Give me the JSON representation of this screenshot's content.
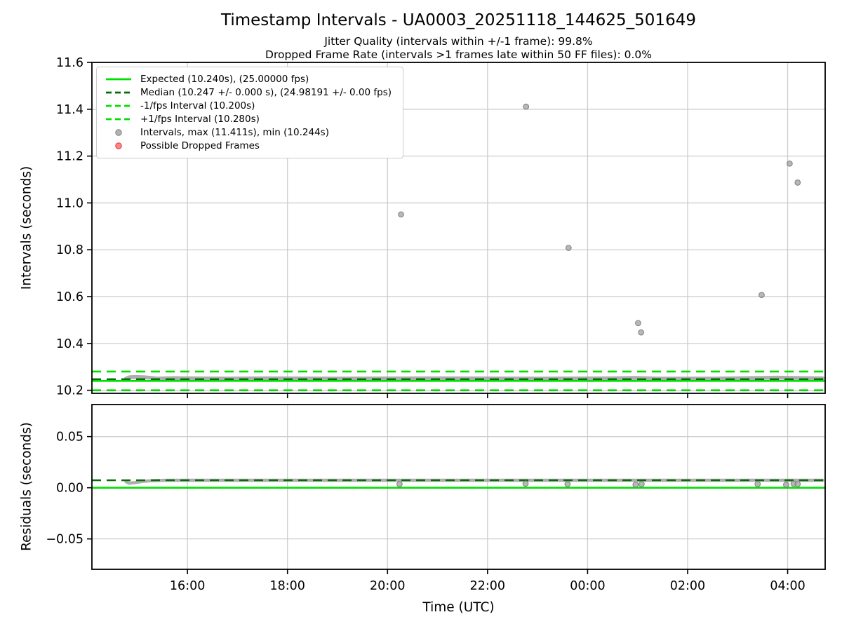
{
  "header": {
    "title": "Timestamp Intervals - UA0003_20251118_144625_501649",
    "jitter_line": "Jitter Quality (intervals within +/-1 frame): 99.8%",
    "dropped_line": "Dropped Frame Rate (intervals >1 frames late within 50 FF files): 0.0%"
  },
  "colors": {
    "bright_green": "#00e000",
    "dark_green": "#006e00",
    "gray_marker": "#a0a0a0",
    "gray_marker_edge": "#828282",
    "red_marker": "#f96a6a",
    "red_marker_edge": "#e23b3b",
    "grid": "#cdcdcd",
    "spine": "#000000",
    "band_gray": "#999999",
    "legend_border": "#cccccc"
  },
  "chart_data": [
    {
      "panel": "intervals",
      "type": "scatter",
      "ylabel": "Intervals (seconds)",
      "x_units": "decimal hours UTC (24+ = next day)",
      "xlim": [
        14.09,
        28.75
      ],
      "ylim": [
        10.187,
        11.6
      ],
      "yticks": [
        10.2,
        10.4,
        10.6,
        10.8,
        11.0,
        11.2,
        11.4,
        11.6
      ],
      "ytick_labels": [
        "10.2",
        "10.4",
        "10.6",
        "10.8",
        "11.0",
        "11.2",
        "11.4",
        "11.6"
      ],
      "xticks": [
        16,
        18,
        20,
        22,
        24,
        26,
        28
      ],
      "xtick_labels": [
        "16:00",
        "18:00",
        "20:00",
        "22:00",
        "00:00",
        "02:00",
        "04:00"
      ],
      "show_xtick_labels": false,
      "grid": true,
      "legend_position": "upper left",
      "hlines": [
        {
          "name": "minus-1fps-line",
          "value": 10.2,
          "dash": "dashed",
          "color_key": "bright_green"
        },
        {
          "name": "plus-1fps-line",
          "value": 10.28,
          "dash": "dashed",
          "color_key": "bright_green"
        },
        {
          "name": "median-line",
          "value": 10.247,
          "dash": "dashed",
          "color_key": "dark_green"
        },
        {
          "name": "expected-line",
          "value": 10.24,
          "dash": "solid",
          "color_key": "bright_green"
        }
      ],
      "dense_band": {
        "note": "dense cluster of ~every interval near the median, 10.244-10.258 s, from 14:46 to 04:42",
        "stroke_width": 5.5,
        "points": [
          [
            14.77,
            10.25
          ],
          [
            14.84,
            10.256
          ],
          [
            14.98,
            10.257
          ],
          [
            15.18,
            10.255
          ],
          [
            15.4,
            10.25
          ],
          [
            15.75,
            10.252
          ],
          [
            16.1,
            10.251
          ],
          [
            16.8,
            10.25
          ],
          [
            17.5,
            10.251
          ],
          [
            19.0,
            10.25
          ],
          [
            21.0,
            10.251
          ],
          [
            23.0,
            10.25
          ],
          [
            24.5,
            10.251
          ],
          [
            24.95,
            10.253
          ],
          [
            25.4,
            10.25
          ],
          [
            26.5,
            10.25
          ],
          [
            27.3,
            10.252
          ],
          [
            27.8,
            10.254
          ],
          [
            28.3,
            10.252
          ],
          [
            28.7,
            10.251
          ]
        ]
      },
      "outlier_points": [
        [
          20.27,
          10.951
        ],
        [
          22.77,
          11.411
        ],
        [
          23.62,
          10.808
        ],
        [
          25.01,
          10.487
        ],
        [
          25.07,
          10.447
        ],
        [
          27.48,
          10.607
        ],
        [
          28.04,
          11.168
        ],
        [
          28.2,
          11.087
        ]
      ],
      "dropped_frame_points": [],
      "legend": [
        {
          "marker": "line-solid",
          "color_key": "bright_green",
          "label": "Expected (10.240s), (25.00000 fps)"
        },
        {
          "marker": "line-dashed",
          "color_key": "dark_green",
          "label": "Median (10.247 +/- 0.000 s), (24.98191 +/- 0.00 fps)"
        },
        {
          "marker": "line-dashed",
          "color_key": "bright_green",
          "label": "-1/fps Interval (10.200s)"
        },
        {
          "marker": "line-dashed",
          "color_key": "bright_green",
          "label": "+1/fps Interval (10.280s)"
        },
        {
          "marker": "dot",
          "color_key": "gray_marker",
          "edge_key": "gray_marker_edge",
          "label": "Intervals, max (11.411s), min (10.244s)"
        },
        {
          "marker": "dot",
          "color_key": "red_marker",
          "edge_key": "red_marker_edge",
          "label": "Possible Dropped Frames"
        }
      ]
    },
    {
      "panel": "residuals",
      "type": "scatter",
      "ylabel": "Residuals (seconds)",
      "xlabel": "Time (UTC)",
      "xlim": [
        14.09,
        28.75
      ],
      "ylim": [
        -0.0797,
        0.0813
      ],
      "yticks": [
        -0.05,
        0.0,
        0.05
      ],
      "ytick_labels": [
        "−0.05",
        "0.00",
        "0.05"
      ],
      "xticks": [
        16,
        18,
        20,
        22,
        24,
        26,
        28
      ],
      "xtick_labels": [
        "16:00",
        "18:00",
        "20:00",
        "22:00",
        "00:00",
        "02:00",
        "04:00"
      ],
      "show_xtick_labels": true,
      "grid": true,
      "hlines": [
        {
          "name": "median-residual-line",
          "value": 0.0073,
          "dash": "dashed",
          "color_key": "dark_green"
        },
        {
          "name": "expected-residual-line",
          "value": 0.0,
          "dash": "solid",
          "color_key": "bright_green"
        }
      ],
      "dense_band": {
        "note": "dense cluster of residuals ~+0.007 s across full time range",
        "stroke_width": 4.5,
        "points": [
          [
            14.77,
            0.006
          ],
          [
            14.83,
            0.0045
          ],
          [
            14.95,
            0.005
          ],
          [
            15.1,
            0.0062
          ],
          [
            15.3,
            0.007
          ],
          [
            15.6,
            0.0073
          ],
          [
            17.0,
            0.0073
          ],
          [
            28.7,
            0.0073
          ]
        ]
      },
      "outlier_points": [
        [
          20.24,
          0.0035
        ],
        [
          22.76,
          0.004
        ],
        [
          23.6,
          0.0035
        ],
        [
          24.96,
          0.003
        ],
        [
          25.08,
          0.0035
        ],
        [
          27.4,
          0.0035
        ],
        [
          27.97,
          0.003
        ],
        [
          28.12,
          0.004
        ],
        [
          28.2,
          0.0035
        ]
      ]
    }
  ]
}
